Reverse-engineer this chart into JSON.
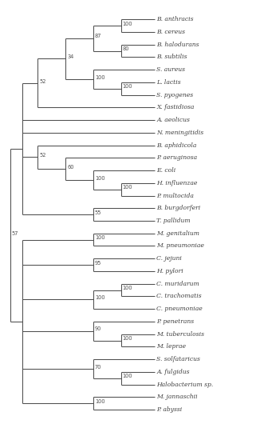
{
  "taxa": [
    "B. anthracis",
    "B. cereus",
    "B. halodurans",
    "B. subtilis",
    "S. aureus",
    "L. lactis",
    "S. pyogenes",
    "X. fastidiosa",
    "A. aeolicus",
    "N. meningitidis",
    "B. aphidicola",
    "P. aeruginosa",
    "E. coli",
    "H. influenzae",
    "P. multocida",
    "B. burgdorferi",
    "T. pallidum",
    "M. genitalium",
    "M. pneumoniae",
    "C. jejuni",
    "H. pylori",
    "C. muridarum",
    "C. trachomatis",
    "C. pneumoniae",
    "P. penetrans",
    "M. tuberculosis",
    "M. leprae",
    "S. solfataricus",
    "A. fulgidus",
    "Halobacterium sp.",
    "M. jannaschii",
    "P. abyssi"
  ],
  "background_color": "#ffffff",
  "line_color": "#505050",
  "text_color": "#404040",
  "bootstrap_color": "#505050"
}
